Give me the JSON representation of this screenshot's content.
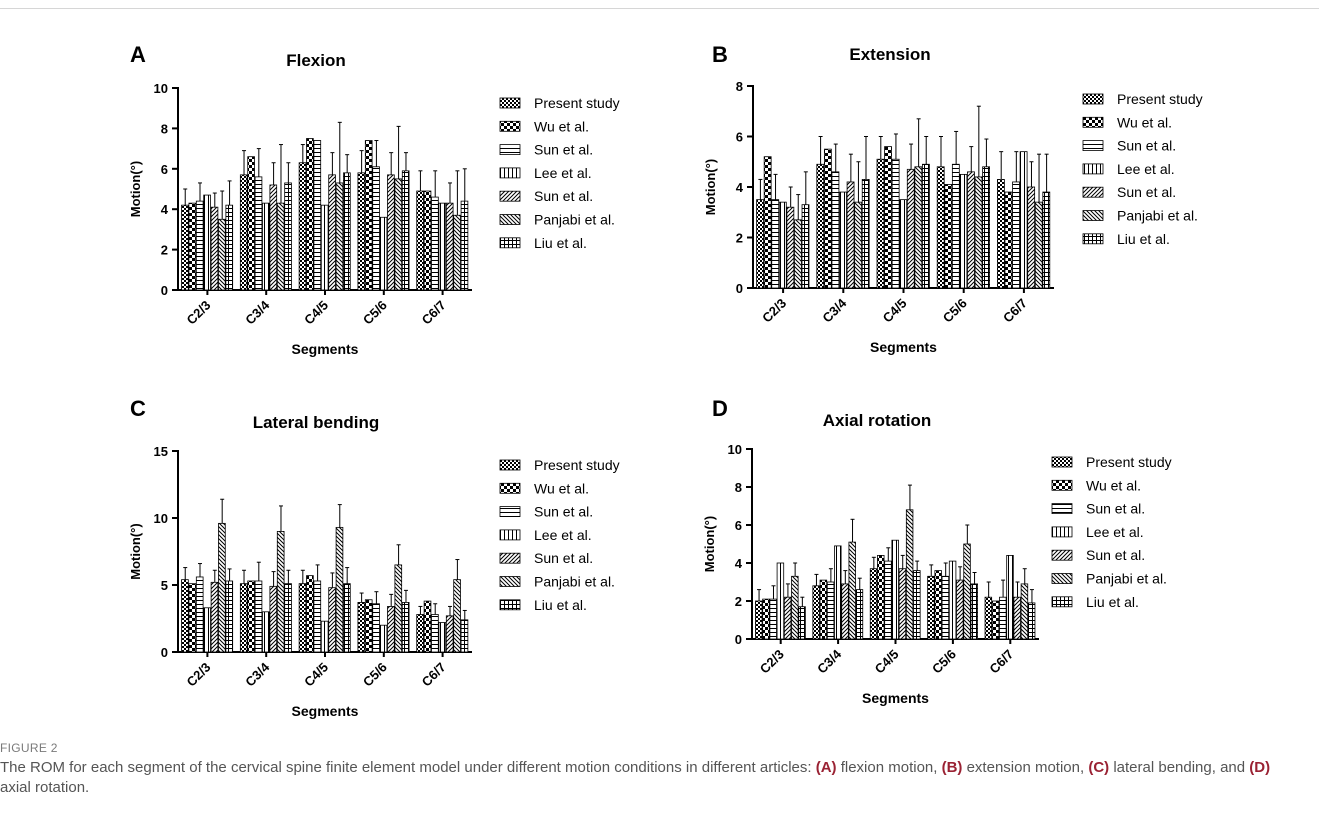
{
  "figure": {
    "legend_entries": [
      "Present study",
      "Wu et al.",
      "Sun et al.",
      "Lee et al.",
      "Sun et al.",
      "Panjabi et al.",
      "Liu et al."
    ]
  },
  "caption": {
    "label": "FIGURE 2",
    "text_1": "The ROM for each segment of the cervical spine finite element model under different motion conditions in different articles: ",
    "m_a": "(A)",
    "text_2": " flexion motion, ",
    "m_b": "(B)",
    "text_3": " extension motion, ",
    "m_c": "(C)",
    "text_4": " lateral bending, and ",
    "m_d": "(D)",
    "text_5": " axial rotation."
  },
  "chart_data": [
    {
      "panel": "A",
      "type": "bar",
      "title": "Flexion",
      "xlabel": "Segments",
      "ylabel": "Motion(°)",
      "ylim": [
        0,
        10
      ],
      "yticks": [
        0,
        2,
        4,
        6,
        8,
        10
      ],
      "categories": [
        "C2/3",
        "C3/4",
        "C4/5",
        "C5/6",
        "C6/7"
      ],
      "legend_placement": "right",
      "series": [
        {
          "name": "Present study",
          "values": [
            4.2,
            5.7,
            6.3,
            5.8,
            4.9
          ],
          "errors": [
            0.8,
            1.2,
            0.9,
            1.1,
            1.0
          ]
        },
        {
          "name": "Wu et al.",
          "values": [
            4.3,
            6.6,
            7.5,
            7.4,
            4.9
          ],
          "errors": [
            0,
            0,
            0,
            0,
            0
          ]
        },
        {
          "name": "Sun et al.",
          "values": [
            4.4,
            5.6,
            7.4,
            6.1,
            4.6
          ],
          "errors": [
            0.9,
            1.4,
            0,
            1.3,
            1.3
          ]
        },
        {
          "name": "Lee et al.",
          "values": [
            4.7,
            4.3,
            4.2,
            3.6,
            4.3
          ],
          "errors": [
            0,
            0,
            0,
            0,
            0
          ]
        },
        {
          "name": "Sun et al.",
          "values": [
            4.1,
            5.2,
            5.7,
            5.7,
            4.3
          ],
          "errors": [
            0.7,
            1.1,
            1.1,
            1.1,
            1.0
          ]
        },
        {
          "name": "Panjabi et al.",
          "values": [
            3.5,
            4.3,
            5.3,
            5.5,
            3.7
          ],
          "errors": [
            1.4,
            2.9,
            3.0,
            2.6,
            2.2
          ]
        },
        {
          "name": "Liu et al.",
          "values": [
            4.2,
            5.3,
            5.8,
            5.9,
            4.4
          ],
          "errors": [
            1.2,
            1.0,
            0.9,
            0.9,
            1.6
          ]
        }
      ]
    },
    {
      "panel": "B",
      "type": "bar",
      "title": "Extension",
      "xlabel": "Segments",
      "ylabel": "Motion(°)",
      "ylim": [
        0,
        8
      ],
      "yticks": [
        0,
        2,
        4,
        6,
        8
      ],
      "categories": [
        "C2/3",
        "C3/4",
        "C4/5",
        "C5/6",
        "C6/7"
      ],
      "legend_placement": "right",
      "series": [
        {
          "name": "Present study",
          "values": [
            3.5,
            4.9,
            5.1,
            4.8,
            4.3
          ],
          "errors": [
            0.8,
            1.1,
            0.9,
            1.2,
            1.1
          ]
        },
        {
          "name": "Wu et al.",
          "values": [
            5.2,
            5.5,
            5.6,
            4.1,
            3.8
          ],
          "errors": [
            0,
            0,
            0,
            0,
            0
          ]
        },
        {
          "name": "Sun et al.",
          "values": [
            3.5,
            4.6,
            5.1,
            4.9,
            4.2
          ],
          "errors": [
            1.0,
            1.1,
            1.0,
            1.3,
            1.2
          ]
        },
        {
          "name": "Lee et al.",
          "values": [
            3.4,
            3.8,
            3.5,
            4.5,
            5.4
          ],
          "errors": [
            0,
            0,
            0,
            0,
            0
          ]
        },
        {
          "name": "Sun et al.",
          "values": [
            3.2,
            4.2,
            4.7,
            4.6,
            4.0
          ],
          "errors": [
            0.8,
            1.1,
            1.0,
            1.0,
            1.0
          ]
        },
        {
          "name": "Panjabi et al.",
          "values": [
            2.7,
            3.4,
            4.8,
            4.4,
            3.4
          ],
          "errors": [
            1.0,
            1.6,
            1.9,
            2.8,
            1.9
          ]
        },
        {
          "name": "Liu et al.",
          "values": [
            3.3,
            4.3,
            4.9,
            4.8,
            3.8
          ],
          "errors": [
            1.3,
            1.7,
            1.1,
            1.1,
            1.5
          ]
        }
      ]
    },
    {
      "panel": "C",
      "type": "bar",
      "title": "Lateral bending",
      "xlabel": "Segments",
      "ylabel": "Motion(°)",
      "ylim": [
        0,
        15
      ],
      "yticks": [
        0,
        5,
        10,
        15
      ],
      "categories": [
        "C2/3",
        "C3/4",
        "C4/5",
        "C5/6",
        "C6/7"
      ],
      "legend_placement": "right",
      "series": [
        {
          "name": "Present study",
          "values": [
            5.4,
            5.1,
            5.1,
            3.7,
            2.8
          ],
          "errors": [
            0.9,
            1.0,
            1.0,
            0.7,
            0.6
          ]
        },
        {
          "name": "Wu et al.",
          "values": [
            5.1,
            5.3,
            5.7,
            3.9,
            3.8
          ],
          "errors": [
            0,
            0,
            0,
            0,
            0
          ]
        },
        {
          "name": "Sun et al.",
          "values": [
            5.6,
            5.3,
            5.3,
            3.6,
            2.8
          ],
          "errors": [
            1.0,
            1.4,
            1.2,
            0.9,
            0.8
          ]
        },
        {
          "name": "Lee et al.",
          "values": [
            3.3,
            3.0,
            2.3,
            2.0,
            2.2
          ],
          "errors": [
            0,
            0,
            0,
            0,
            0
          ]
        },
        {
          "name": "Sun et al.",
          "values": [
            5.2,
            4.9,
            4.8,
            3.4,
            2.7
          ],
          "errors": [
            0.9,
            1.1,
            1.1,
            0.9,
            0.7
          ]
        },
        {
          "name": "Panjabi et al.",
          "values": [
            9.6,
            9.0,
            9.3,
            6.5,
            5.4
          ],
          "errors": [
            1.8,
            1.9,
            1.7,
            1.5,
            1.5
          ]
        },
        {
          "name": "Liu et al.",
          "values": [
            5.3,
            5.1,
            5.1,
            3.7,
            2.4
          ],
          "errors": [
            0.9,
            1.0,
            1.2,
            0.9,
            0.7
          ]
        }
      ]
    },
    {
      "panel": "D",
      "type": "bar",
      "title": "Axial rotation",
      "xlabel": "Segments",
      "ylabel": "Motion(°)",
      "ylim": [
        0,
        10
      ],
      "yticks": [
        0,
        2,
        4,
        6,
        8,
        10
      ],
      "categories": [
        "C2/3",
        "C3/4",
        "C4/5",
        "C5/6",
        "C6/7"
      ],
      "legend_placement": "right",
      "series": [
        {
          "name": "Present study",
          "values": [
            2.0,
            2.8,
            3.7,
            3.3,
            2.2
          ],
          "errors": [
            0.6,
            0.6,
            0.6,
            0.6,
            0.8
          ]
        },
        {
          "name": "Wu et al.",
          "values": [
            2.1,
            3.1,
            4.4,
            3.6,
            2.0
          ],
          "errors": [
            0,
            0,
            0,
            0,
            0
          ]
        },
        {
          "name": "Sun et al.",
          "values": [
            2.1,
            3.0,
            4.1,
            3.3,
            2.2
          ],
          "errors": [
            0.7,
            0.7,
            0.7,
            0.7,
            0.9
          ]
        },
        {
          "name": "Lee et al.",
          "values": [
            4.0,
            4.9,
            5.2,
            4.1,
            4.4
          ],
          "errors": [
            0,
            0,
            0,
            0,
            0
          ]
        },
        {
          "name": "Sun et al.",
          "values": [
            2.2,
            2.9,
            3.7,
            3.1,
            2.2
          ],
          "errors": [
            0.7,
            0.7,
            0.7,
            0.7,
            0.8
          ]
        },
        {
          "name": "Panjabi et al.",
          "values": [
            3.3,
            5.1,
            6.8,
            5.0,
            2.9
          ],
          "errors": [
            0.7,
            1.2,
            1.3,
            1.0,
            0.8
          ]
        },
        {
          "name": "Liu et al.",
          "values": [
            1.7,
            2.6,
            3.6,
            2.9,
            1.9
          ],
          "errors": [
            0.5,
            0.6,
            0.5,
            0.6,
            0.7
          ]
        }
      ]
    }
  ]
}
